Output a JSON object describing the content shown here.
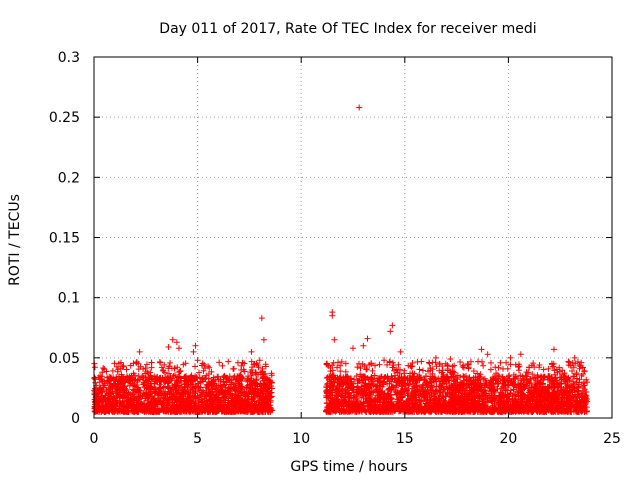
{
  "chart_data": {
    "type": "scatter",
    "title": "Day 011 of 2017, Rate Of TEC Index for receiver medi",
    "xlabel": "GPS time / hours",
    "ylabel": "ROTI / TECUs",
    "xlim": [
      0,
      25
    ],
    "ylim": [
      0,
      0.3
    ],
    "xticks": [
      0,
      5,
      10,
      15,
      20,
      25
    ],
    "yticks": [
      0,
      0.05,
      0.1,
      0.15,
      0.2,
      0.25,
      0.3
    ],
    "xtick_labels": [
      "0",
      "5",
      "10",
      "15",
      "20",
      "25"
    ],
    "ytick_labels": [
      "0",
      "0.05",
      "0.1",
      "0.15",
      "0.2",
      "0.25",
      "0.3"
    ],
    "grid": true,
    "marker": "+",
    "series": [
      {
        "name": "ROTI",
        "color": "#ff0000",
        "coverage": [
          [
            0.0,
            8.6
          ],
          [
            11.2,
            23.8
          ]
        ],
        "typical_range": [
          0.005,
          0.035
        ],
        "notable_points": [
          {
            "x": 12.8,
            "y": 0.258
          },
          {
            "x": 8.1,
            "y": 0.083
          },
          {
            "x": 11.5,
            "y": 0.088
          },
          {
            "x": 11.5,
            "y": 0.085
          },
          {
            "x": 14.4,
            "y": 0.077
          },
          {
            "x": 14.3,
            "y": 0.072
          },
          {
            "x": 8.2,
            "y": 0.065
          },
          {
            "x": 11.6,
            "y": 0.065
          },
          {
            "x": 13.2,
            "y": 0.066
          },
          {
            "x": 3.8,
            "y": 0.065
          },
          {
            "x": 4.0,
            "y": 0.063
          },
          {
            "x": 3.6,
            "y": 0.059
          },
          {
            "x": 4.1,
            "y": 0.058
          },
          {
            "x": 4.9,
            "y": 0.06
          },
          {
            "x": 4.8,
            "y": 0.055
          },
          {
            "x": 2.2,
            "y": 0.055
          },
          {
            "x": 7.6,
            "y": 0.055
          },
          {
            "x": 12.5,
            "y": 0.058
          },
          {
            "x": 13.0,
            "y": 0.06
          },
          {
            "x": 14.8,
            "y": 0.055
          },
          {
            "x": 18.7,
            "y": 0.057
          },
          {
            "x": 19.0,
            "y": 0.053
          },
          {
            "x": 20.1,
            "y": 0.05
          },
          {
            "x": 20.6,
            "y": 0.053
          },
          {
            "x": 22.2,
            "y": 0.057
          },
          {
            "x": 23.2,
            "y": 0.05
          },
          {
            "x": 8.0,
            "y": 0.048
          },
          {
            "x": 5.0,
            "y": 0.048
          },
          {
            "x": 1.3,
            "y": 0.046
          },
          {
            "x": 16.5,
            "y": 0.05
          },
          {
            "x": 17.2,
            "y": 0.049
          },
          {
            "x": 14.0,
            "y": 0.048
          },
          {
            "x": 15.8,
            "y": 0.047
          },
          {
            "x": 0.4,
            "y": 0.038
          },
          {
            "x": 22.9,
            "y": 0.047
          },
          {
            "x": 21.5,
            "y": 0.044
          },
          {
            "x": 23.6,
            "y": 0.042
          }
        ]
      }
    ]
  }
}
